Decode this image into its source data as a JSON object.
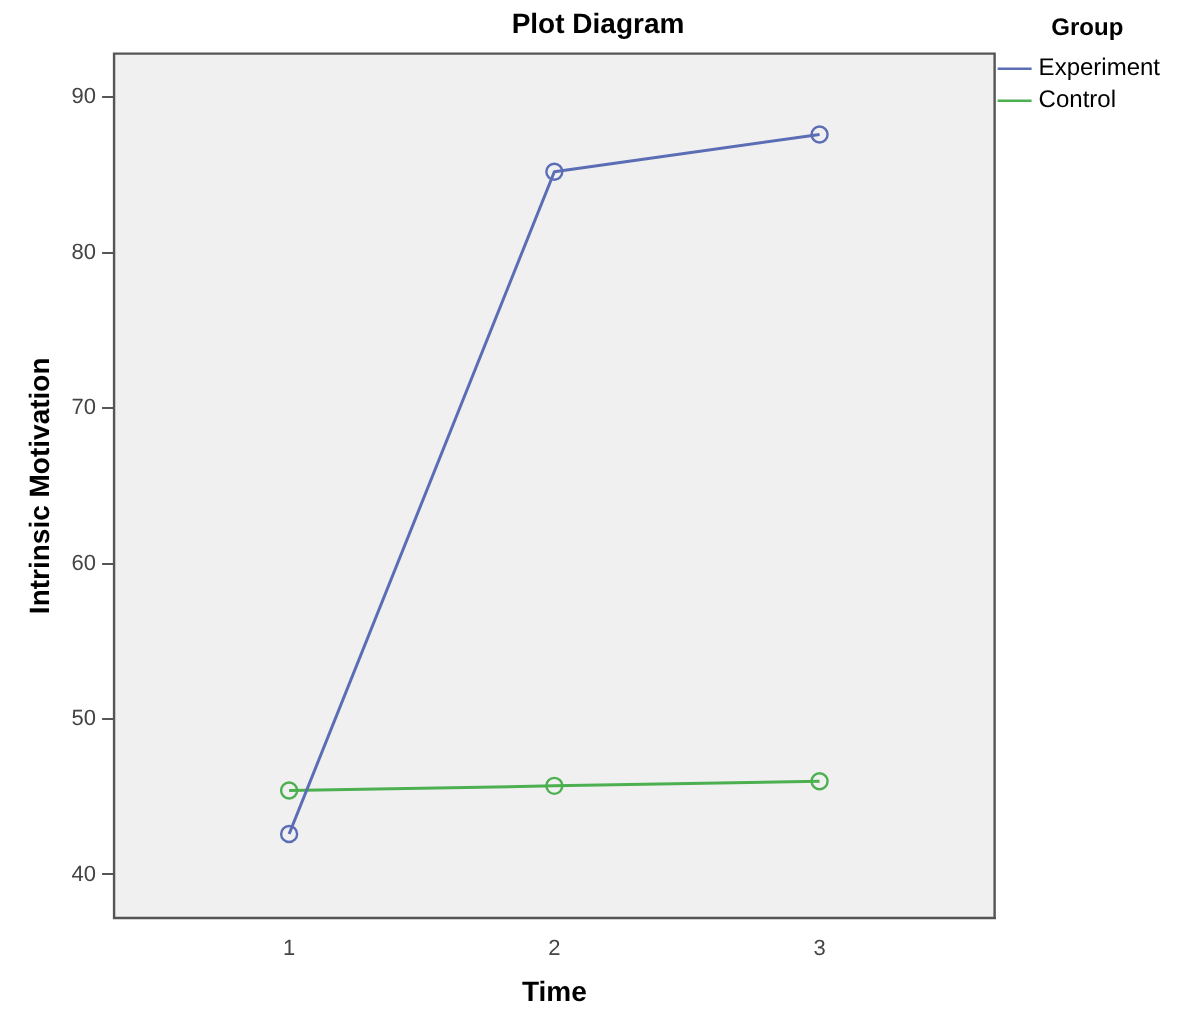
{
  "chart_data": {
    "type": "line",
    "title": "Plot Diagram",
    "xlabel": "Time",
    "ylabel": "Intrinsic Motivation",
    "legend_title": "Group",
    "x": [
      1,
      2,
      3
    ],
    "series": [
      {
        "name": "Experiment",
        "color": "#5b6db5",
        "values": [
          42.6,
          85.2,
          87.6
        ]
      },
      {
        "name": "Control",
        "color": "#4cb050",
        "values": [
          45.4,
          45.7,
          46.0
        ]
      }
    ],
    "xlim": [
      0.34,
      3.66
    ],
    "xticks": [
      1,
      2,
      3
    ],
    "ylim": [
      37.2,
      92.8
    ],
    "yticks": [
      40,
      50,
      60,
      70,
      80,
      90
    ],
    "grid": false,
    "legend": "top right",
    "marker": "circle",
    "line_style": "solid"
  }
}
